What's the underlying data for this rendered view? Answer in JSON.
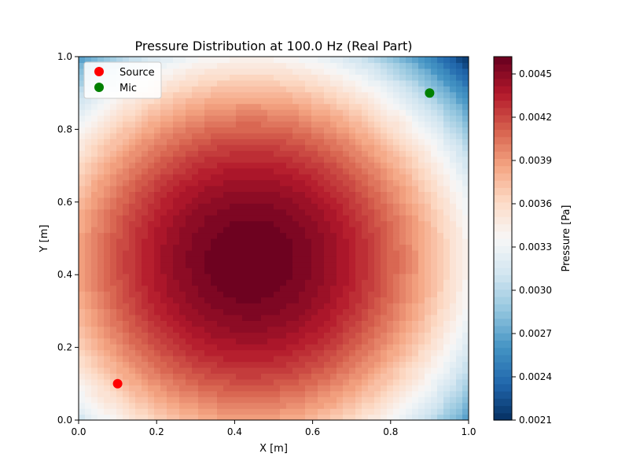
{
  "chart_data": {
    "type": "heatmap",
    "subtype": "filled-contour",
    "title": "Pressure Distribution at 100.0 Hz (Real Part)",
    "xlabel": "X [m]",
    "ylabel": "Y [m]",
    "xlim": [
      0.0,
      1.0
    ],
    "ylim": [
      0.0,
      1.0
    ],
    "x_ticks": [
      0.0,
      0.2,
      0.4,
      0.6,
      0.8,
      1.0
    ],
    "x_tick_labels": [
      "0.0",
      "0.2",
      "0.4",
      "0.6",
      "0.8",
      "1.0"
    ],
    "y_ticks": [
      0.0,
      0.2,
      0.4,
      0.6,
      0.8,
      1.0
    ],
    "y_tick_labels": [
      "0.0",
      "0.2",
      "0.4",
      "0.6",
      "0.8",
      "1.0"
    ],
    "colormap": "RdBu_r",
    "colormap_stops": [
      "#053061",
      "#2166ac",
      "#4393c3",
      "#92c5de",
      "#d1e5f0",
      "#f7f7f7",
      "#fddbc7",
      "#f4a582",
      "#d6604d",
      "#b2182b",
      "#67001f"
    ],
    "field": {
      "peak_location": [
        0.44,
        0.44
      ],
      "peak_value": 0.00462,
      "corner_values": {
        "bottom-left": 0.0031,
        "bottom-right": 0.0031,
        "top-left": 0.0031,
        "top-right": 0.0021
      },
      "levels": 50
    },
    "colorbar": {
      "label": "Pressure [Pa]",
      "min": 0.0021,
      "max": 0.00462,
      "ticks": [
        0.0021,
        0.0024,
        0.0027,
        0.003,
        0.0033,
        0.0036,
        0.0039,
        0.0042,
        0.0045
      ],
      "tick_labels": [
        "0.0021",
        "0.0024",
        "0.0027",
        "0.0030",
        "0.0033",
        "0.0036",
        "0.0039",
        "0.0042",
        "0.0045"
      ]
    },
    "points": [
      {
        "name": "Source",
        "x": 0.1,
        "y": 0.1,
        "color": "#ff0000"
      },
      {
        "name": "Mic",
        "x": 0.9,
        "y": 0.9,
        "color": "#008000"
      }
    ],
    "legend": {
      "placement": "top-left",
      "entries": [
        "Source",
        "Mic"
      ]
    }
  }
}
